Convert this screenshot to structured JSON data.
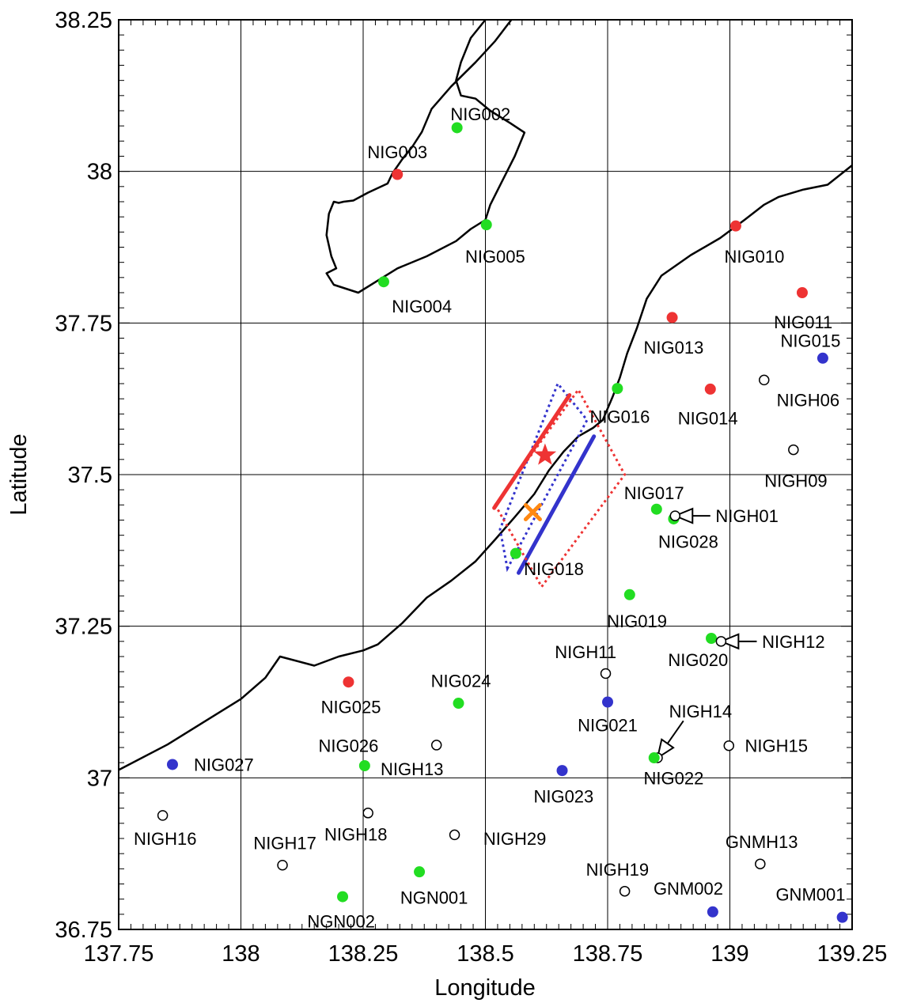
{
  "chart_data": {
    "type": "scatter",
    "xlabel": "Longitude",
    "ylabel": "Latitude",
    "xlim": [
      137.75,
      139.25
    ],
    "ylim": [
      36.75,
      38.25
    ],
    "grid": true,
    "x_ticks": [
      "137.75",
      "138",
      "138.25",
      "138.5",
      "138.75",
      "139",
      "139.25"
    ],
    "y_ticks": [
      "36.75",
      "37",
      "37.25",
      "37.5",
      "37.75",
      "38",
      "38.25"
    ],
    "colors": {
      "red": "#ee3333",
      "green": "#22dd22",
      "blue": "#3333cc",
      "open": "#ffffff",
      "orange": "#ff8811",
      "coast": "#000000"
    },
    "stations": [
      {
        "name": "NIG002",
        "lon": 138.442,
        "lat": 38.072,
        "color": "green",
        "label_lon": 138.49,
        "label_lat": 38.095
      },
      {
        "name": "NIG003",
        "lon": 138.32,
        "lat": 37.995,
        "color": "red",
        "label_lon": 138.32,
        "label_lat": 38.032
      },
      {
        "name": "NIG004",
        "lon": 138.292,
        "lat": 37.818,
        "color": "green",
        "label_lon": 138.37,
        "label_lat": 37.778
      },
      {
        "name": "NIG005",
        "lon": 138.502,
        "lat": 37.912,
        "color": "green",
        "label_lon": 138.52,
        "label_lat": 37.86
      },
      {
        "name": "NIG010",
        "lon": 139.012,
        "lat": 37.91,
        "color": "red",
        "label_lon": 139.05,
        "label_lat": 37.86
      },
      {
        "name": "NIG011",
        "lon": 139.148,
        "lat": 37.8,
        "color": "red",
        "label_lon": 139.15,
        "label_lat": 37.752
      },
      {
        "name": "NIG013",
        "lon": 138.882,
        "lat": 37.759,
        "color": "red",
        "label_lon": 138.885,
        "label_lat": 37.71
      },
      {
        "name": "NIG014",
        "lon": 138.96,
        "lat": 37.641,
        "color": "red",
        "label_lon": 138.955,
        "label_lat": 37.593
      },
      {
        "name": "NIG015",
        "lon": 139.19,
        "lat": 37.692,
        "color": "blue",
        "label_lon": 139.165,
        "label_lat": 37.721
      },
      {
        "name": "NIGH06",
        "lon": 139.07,
        "lat": 37.656,
        "color": "open",
        "label_lon": 139.16,
        "label_lat": 37.623
      },
      {
        "name": "NIG016",
        "lon": 138.77,
        "lat": 37.642,
        "color": "green",
        "label_lon": 138.775,
        "label_lat": 37.596
      },
      {
        "name": "NIGH09",
        "lon": 139.13,
        "lat": 37.541,
        "color": "open",
        "label_lon": 139.135,
        "label_lat": 37.49
      },
      {
        "name": "NIG017",
        "lon": 138.85,
        "lat": 37.443,
        "color": "green",
        "label_lon": 138.845,
        "label_lat": 37.47
      },
      {
        "name": "NIG028",
        "lon": 138.885,
        "lat": 37.427,
        "color": "green",
        "label_lon": 138.915,
        "label_lat": 37.39
      },
      {
        "name": "NIGH01",
        "lon": 138.888,
        "lat": 37.432,
        "color": "open",
        "label_lon": 139.035,
        "label_lat": 37.432
      },
      {
        "name": "NIG018",
        "lon": 138.562,
        "lat": 37.37,
        "color": "green",
        "label_lon": 138.64,
        "label_lat": 37.345
      },
      {
        "name": "NIG019",
        "lon": 138.795,
        "lat": 37.302,
        "color": "green",
        "label_lon": 138.81,
        "label_lat": 37.259
      },
      {
        "name": "NIG020",
        "lon": 138.962,
        "lat": 37.23,
        "color": "green",
        "label_lon": 138.935,
        "label_lat": 37.195
      },
      {
        "name": "NIGH12",
        "lon": 138.982,
        "lat": 37.225,
        "color": "open",
        "label_lon": 139.13,
        "label_lat": 37.225
      },
      {
        "name": "NIGH11",
        "lon": 138.746,
        "lat": 37.172,
        "color": "open",
        "label_lon": 138.705,
        "label_lat": 37.208
      },
      {
        "name": "NIG021",
        "lon": 138.75,
        "lat": 37.125,
        "color": "blue",
        "label_lon": 138.75,
        "label_lat": 37.087
      },
      {
        "name": "NIG025",
        "lon": 138.22,
        "lat": 37.158,
        "color": "red",
        "label_lon": 138.225,
        "label_lat": 37.117
      },
      {
        "name": "NIG024",
        "lon": 138.445,
        "lat": 37.123,
        "color": "green",
        "label_lon": 138.45,
        "label_lat": 37.16
      },
      {
        "name": "NIGH14",
        "lon": 138.852,
        "lat": 37.033,
        "color": "open",
        "label_lon": 138.94,
        "label_lat": 37.11
      },
      {
        "name": "NIG022",
        "lon": 138.845,
        "lat": 37.033,
        "color": "green",
        "label_lon": 138.885,
        "label_lat": 37.0
      },
      {
        "name": "NIGH15",
        "lon": 138.998,
        "lat": 37.053,
        "color": "open",
        "label_lon": 139.095,
        "label_lat": 37.053
      },
      {
        "name": "NIG026",
        "lon": 138.253,
        "lat": 37.02,
        "color": "green",
        "label_lon": 138.22,
        "label_lat": 37.053
      },
      {
        "name": "NIGH13",
        "lon": 138.4,
        "lat": 37.054,
        "color": "open",
        "label_lon": 138.35,
        "label_lat": 37.015
      },
      {
        "name": "NIG027",
        "lon": 137.86,
        "lat": 37.022,
        "color": "blue",
        "label_lon": 137.965,
        "label_lat": 37.022
      },
      {
        "name": "NIG023",
        "lon": 138.657,
        "lat": 37.012,
        "color": "blue",
        "label_lon": 138.66,
        "label_lat": 36.97
      },
      {
        "name": "NIGH16",
        "lon": 137.84,
        "lat": 36.938,
        "color": "open",
        "label_lon": 137.845,
        "label_lat": 36.9
      },
      {
        "name": "NIGH17",
        "lon": 138.085,
        "lat": 36.856,
        "color": "open",
        "label_lon": 138.09,
        "label_lat": 36.893
      },
      {
        "name": "NIGH18",
        "lon": 138.26,
        "lat": 36.942,
        "color": "open",
        "label_lon": 138.235,
        "label_lat": 36.907
      },
      {
        "name": "NIGH29",
        "lon": 138.437,
        "lat": 36.906,
        "color": "open",
        "label_lon": 138.56,
        "label_lat": 36.9
      },
      {
        "name": "NGN001",
        "lon": 138.365,
        "lat": 36.845,
        "color": "green",
        "label_lon": 138.395,
        "label_lat": 36.803
      },
      {
        "name": "NGN002",
        "lon": 138.208,
        "lat": 36.804,
        "color": "green",
        "label_lon": 138.205,
        "label_lat": 36.764
      },
      {
        "name": "NIGH19",
        "lon": 138.785,
        "lat": 36.813,
        "color": "open",
        "label_lon": 138.77,
        "label_lat": 36.849
      },
      {
        "name": "GNMH13",
        "lon": 139.062,
        "lat": 36.858,
        "color": "open",
        "label_lon": 139.065,
        "label_lat": 36.895
      },
      {
        "name": "GNM002",
        "lon": 138.965,
        "lat": 36.779,
        "color": "blue",
        "label_lon": 138.915,
        "label_lat": 36.818
      },
      {
        "name": "GNM001",
        "lon": 139.23,
        "lat": 36.77,
        "color": "blue",
        "label_lon": 139.165,
        "label_lat": 36.808
      }
    ],
    "arrows": [
      {
        "from_lon": 138.96,
        "from_lat": 37.432,
        "to_lon": 138.888,
        "to_lat": 37.432
      },
      {
        "from_lon": 139.055,
        "from_lat": 37.225,
        "to_lon": 138.982,
        "to_lat": 37.225
      },
      {
        "from_lon": 138.905,
        "from_lat": 37.094,
        "to_lon": 138.852,
        "to_lat": 37.033
      }
    ],
    "epicenter_star": {
      "lon": 138.622,
      "lat": 37.532,
      "color": "red"
    },
    "hypocenter_cross": {
      "lon": 138.597,
      "lat": 37.438,
      "color": "orange"
    },
    "fault_planes": [
      {
        "color": "blue",
        "top_edge": [
          [
            138.568,
            37.338
          ],
          [
            138.722,
            37.563
          ]
        ],
        "outline": [
          [
            138.545,
            37.345
          ],
          [
            138.53,
            37.41
          ],
          [
            138.648,
            37.65
          ],
          [
            138.708,
            37.59
          ]
        ]
      },
      {
        "color": "red",
        "top_edge": [
          [
            138.518,
            37.445
          ],
          [
            138.672,
            37.631
          ]
        ],
        "outline": [
          [
            138.52,
            37.45
          ],
          [
            138.615,
            37.315
          ],
          [
            138.785,
            37.5
          ],
          [
            138.69,
            37.64
          ]
        ]
      }
    ],
    "coastlines": [
      [
        [
          137.75,
          37.013
        ],
        [
          137.85,
          37.055
        ],
        [
          137.92,
          37.09
        ],
        [
          138.0,
          37.13
        ],
        [
          138.05,
          37.165
        ],
        [
          138.08,
          37.2
        ],
        [
          138.15,
          37.185
        ],
        [
          138.2,
          37.2
        ],
        [
          138.25,
          37.21
        ],
        [
          138.28,
          37.22
        ],
        [
          138.33,
          37.255
        ],
        [
          138.38,
          37.297
        ],
        [
          138.43,
          37.325
        ],
        [
          138.48,
          37.357
        ],
        [
          138.52,
          37.393
        ],
        [
          138.56,
          37.43
        ],
        [
          138.6,
          37.468
        ],
        [
          138.63,
          37.507
        ],
        [
          138.66,
          37.538
        ],
        [
          138.69,
          37.563
        ],
        [
          138.72,
          37.577
        ],
        [
          138.74,
          37.59
        ],
        [
          138.76,
          37.628
        ],
        [
          138.775,
          37.66
        ],
        [
          138.79,
          37.7
        ],
        [
          138.81,
          37.742
        ],
        [
          138.83,
          37.79
        ],
        [
          138.86,
          37.828
        ],
        [
          138.92,
          37.862
        ],
        [
          138.98,
          37.89
        ],
        [
          139.03,
          37.92
        ],
        [
          139.07,
          37.945
        ],
        [
          139.1,
          37.958
        ],
        [
          139.15,
          37.97
        ],
        [
          139.2,
          37.978
        ],
        [
          139.25,
          38.01
        ]
      ],
      [
        [
          138.553,
          38.25
        ],
        [
          138.52,
          38.215
        ],
        [
          138.48,
          38.18
        ],
        [
          138.43,
          38.14
        ],
        [
          138.39,
          38.103
        ],
        [
          138.37,
          38.065
        ],
        [
          138.35,
          38.04
        ],
        [
          138.33,
          38.02
        ],
        [
          138.31,
          37.997
        ],
        [
          138.3,
          37.98
        ],
        [
          138.26,
          37.965
        ],
        [
          138.23,
          37.952
        ],
        [
          138.21,
          37.95
        ],
        [
          138.2,
          37.948
        ],
        [
          138.19,
          37.95
        ],
        [
          138.18,
          37.93
        ],
        [
          138.175,
          37.895
        ],
        [
          138.185,
          37.86
        ],
        [
          138.195,
          37.84
        ],
        [
          138.175,
          37.832
        ],
        [
          138.19,
          37.813
        ],
        [
          138.24,
          37.8
        ],
        [
          138.28,
          37.82
        ],
        [
          138.32,
          37.84
        ],
        [
          138.38,
          37.86
        ],
        [
          138.44,
          37.885
        ],
        [
          138.47,
          37.905
        ],
        [
          138.5,
          37.92
        ],
        [
          138.51,
          37.945
        ],
        [
          138.53,
          37.977
        ],
        [
          138.56,
          38.025
        ],
        [
          138.58,
          38.064
        ],
        [
          138.55,
          38.08
        ],
        [
          138.51,
          38.1
        ],
        [
          138.48,
          38.12
        ],
        [
          138.45,
          38.125
        ],
        [
          138.44,
          38.15
        ],
        [
          138.45,
          38.18
        ],
        [
          138.47,
          38.22
        ],
        [
          138.5,
          38.25
        ]
      ]
    ]
  }
}
